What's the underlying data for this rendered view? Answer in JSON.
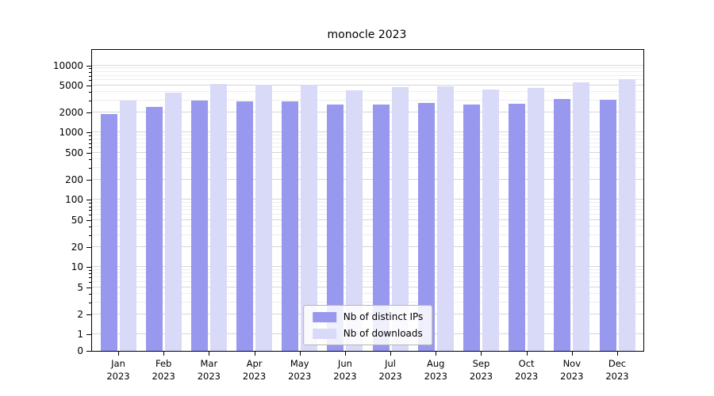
{
  "chart_data": {
    "type": "bar",
    "title": "monocle 2023",
    "categories": [
      "Jan",
      "Feb",
      "Mar",
      "Apr",
      "May",
      "Jun",
      "Jul",
      "Aug",
      "Sep",
      "Oct",
      "Nov",
      "Dec"
    ],
    "year": "2023",
    "series": [
      {
        "name": "Nb of distinct IPs",
        "color": "#9898ee",
        "values": [
          1900,
          2400,
          3000,
          2950,
          2950,
          2600,
          2650,
          2750,
          2650,
          2700,
          3200,
          3100
        ]
      },
      {
        "name": "Nb of downloads",
        "color": "#d9d9f8",
        "values": [
          3000,
          3900,
          5300,
          5200,
          5200,
          4300,
          4700,
          4900,
          4400,
          4600,
          5600,
          6300
        ]
      }
    ],
    "y_ticks": [
      0,
      1,
      2,
      5,
      10,
      20,
      50,
      100,
      200,
      500,
      1000,
      2000,
      5000,
      10000
    ],
    "y_scale": "symlog",
    "y_max": 17000,
    "grid": true,
    "legend_position": "lower center"
  },
  "colors": {
    "grid_major": "#d6d6d6",
    "grid_minor": "#ededed",
    "axis": "#000000",
    "legend_border": "#b5b5b5",
    "series_ips": "#9898ee",
    "series_downloads": "#d9d9f8"
  }
}
